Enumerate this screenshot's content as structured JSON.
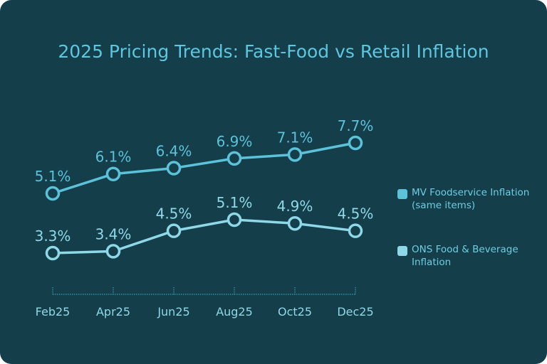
{
  "chart_data": {
    "type": "line",
    "title": "2025 Pricing Trends: Fast-Food vs Retail Inflation",
    "categories": [
      "Feb25",
      "Apr25",
      "Jun25",
      "Aug25",
      "Oct25",
      "Dec25"
    ],
    "series": [
      {
        "name": "MV Foodservice Inflation (same items)",
        "values": [
          5.1,
          6.1,
          6.4,
          6.9,
          7.1,
          7.7
        ],
        "labels": [
          "5.1%",
          "6.1%",
          "6.4%",
          "6.9%",
          "7.1%",
          "7.7%"
        ],
        "color": "#5cc2da"
      },
      {
        "name": "ONS Food & Beverage Inflation",
        "values": [
          3.3,
          3.4,
          4.5,
          5.1,
          4.9,
          4.5
        ],
        "labels": [
          "3.3%",
          "3.4%",
          "4.5%",
          "5.1%",
          "4.9%",
          "4.5%"
        ],
        "color": "#8fd8e8"
      }
    ],
    "legend_position": "right",
    "grid": false
  },
  "colors": {
    "background": "#133e4a",
    "title": "#5ec6de"
  }
}
